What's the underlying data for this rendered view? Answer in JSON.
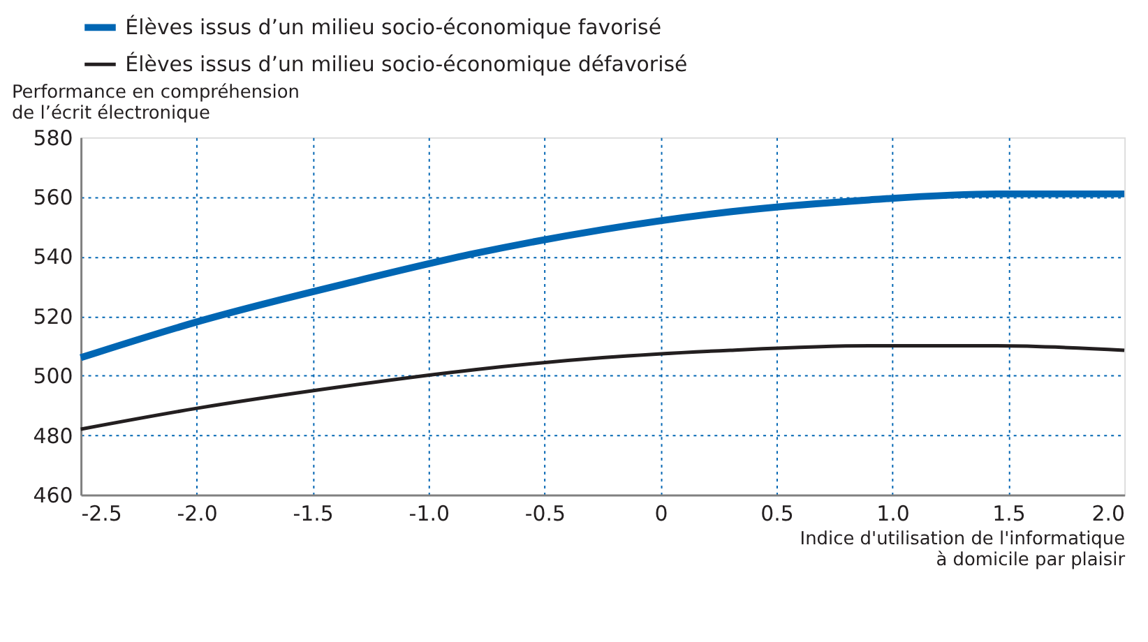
{
  "chart_data": {
    "type": "line",
    "xlabel": "Indice d'utilisation de l'informatique\nà domicile par plaisir",
    "ylabel": "Performance en compréhension\nde l’écrit électronique",
    "series": [
      {
        "name": "Élèves issus d’un milieu socio-économique favorisé",
        "color": "#0066b3",
        "x": [
          -2.5,
          -2.0,
          -1.35,
          -0.8,
          -0.25,
          0.3,
          0.9,
          1.45,
          2.0
        ],
        "values": [
          506,
          518,
          531,
          541,
          549,
          555,
          559,
          561,
          561
        ]
      },
      {
        "name": "Élèves issus d’un milieu socio-économique défavorisé",
        "color": "#231f20",
        "x": [
          -2.5,
          -2.0,
          -1.4,
          -0.8,
          -0.25,
          0.3,
          0.9,
          1.45,
          2.0
        ],
        "values": [
          482,
          489,
          496,
          502,
          506,
          508.5,
          510,
          510,
          508.5
        ]
      }
    ],
    "xlim": [
      -2.5,
      2.0
    ],
    "xticks": [
      {
        "value": -2.5,
        "label": "-2.5"
      },
      {
        "value": -2.0,
        "label": "-2.0"
      },
      {
        "value": -1.5,
        "label": "-1.5"
      },
      {
        "value": -1.0,
        "label": "-1.0"
      },
      {
        "value": -0.5,
        "label": "-0.5"
      },
      0,
      {
        "value": 0.5,
        "label": "0.5"
      },
      {
        "value": 1.0,
        "label": "1.0"
      },
      {
        "value": 1.5,
        "label": "1.5"
      },
      {
        "value": 2.0,
        "label": "2.0"
      }
    ],
    "ylim": [
      460,
      580
    ],
    "yticks": [
      460,
      480,
      500,
      520,
      540,
      560,
      580
    ],
    "grid": true,
    "legend": "top",
    "marker": "none",
    "line_style": "solid"
  }
}
